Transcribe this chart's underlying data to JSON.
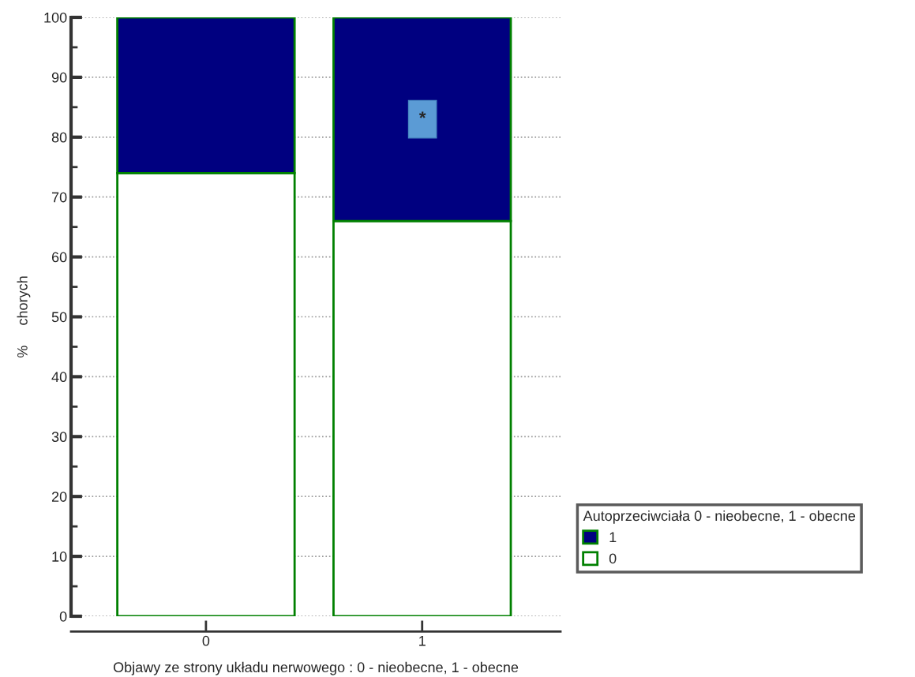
{
  "chart_data": {
    "type": "bar",
    "stacked": true,
    "xlabel": "Objawy ze strony układu nerwowego : 0 - nieobecne, 1 - obecne",
    "ylabel": "%     chorych",
    "legend_title": "Autoprzeciwciała 0 - nieobecne, 1 - obecne",
    "categories": [
      "0",
      "1"
    ],
    "series": [
      {
        "name": "0",
        "color": "#ffffff",
        "values": [
          74,
          66
        ]
      },
      {
        "name": "1",
        "color": "#000080",
        "values": [
          26,
          34
        ]
      }
    ],
    "ylim": [
      0,
      100
    ],
    "yticks": [
      0,
      10,
      20,
      30,
      40,
      50,
      60,
      70,
      80,
      90,
      100
    ],
    "grid": "y",
    "legend": "right",
    "annotations": [
      "*"
    ]
  }
}
